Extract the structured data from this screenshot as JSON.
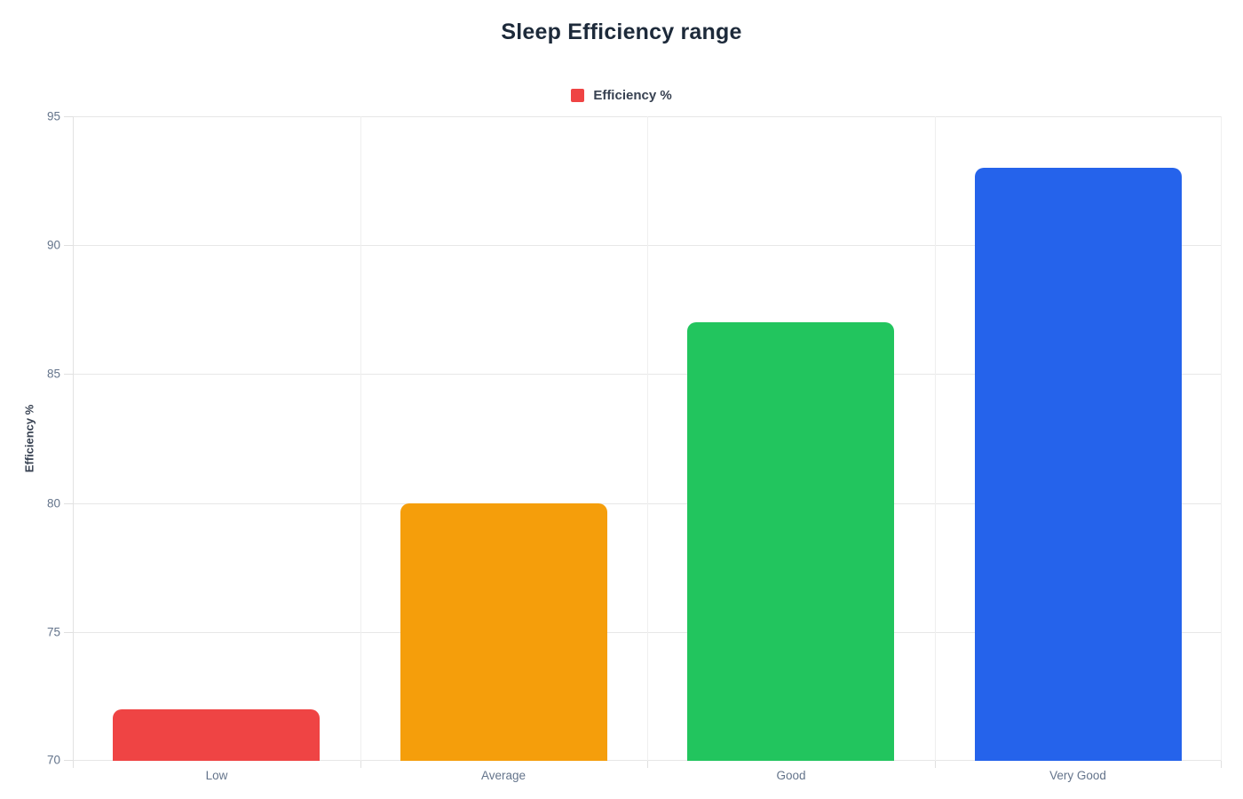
{
  "chart_data": {
    "type": "bar",
    "title": "Sleep Efficiency range",
    "xlabel": "",
    "ylabel": "Efficiency %",
    "categories": [
      "Low",
      "Average",
      "Good",
      "Very Good"
    ],
    "series": [
      {
        "name": "Efficiency %",
        "values": [
          72,
          80,
          87,
          93
        ]
      }
    ],
    "values": [
      72,
      80,
      87,
      93
    ],
    "bar_colors": [
      "#ef4444",
      "#f59e0b",
      "#22c55e",
      "#2563eb"
    ],
    "legend": {
      "label": "Efficiency %",
      "color": "#ef4444",
      "position": "top"
    },
    "ylim": [
      70,
      95
    ],
    "yticks": [
      70,
      75,
      80,
      85,
      90,
      95
    ],
    "grid": true,
    "background": "#ffffff",
    "colors": {
      "title_text": "#1d2a3a",
      "axis_tick_text": "#64748b",
      "axis_title_text": "#374151",
      "gridline": "#e7e7e7"
    }
  }
}
